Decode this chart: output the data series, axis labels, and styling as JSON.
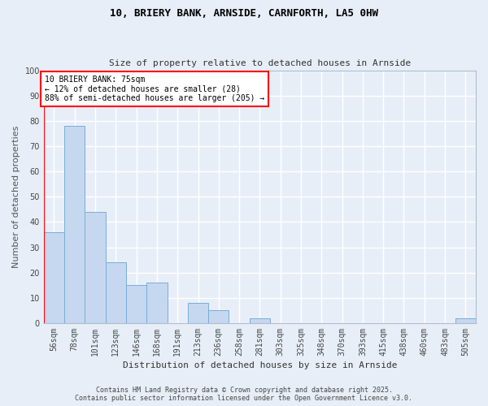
{
  "title": "10, BRIERY BANK, ARNSIDE, CARNFORTH, LA5 0HW",
  "subtitle": "Size of property relative to detached houses in Arnside",
  "xlabel": "Distribution of detached houses by size in Arnside",
  "ylabel": "Number of detached properties",
  "bar_color": "#c5d8f0",
  "bar_edge_color": "#7aadd4",
  "background_color": "#e8eef8",
  "fig_background": "#e8eef8",
  "categories": [
    "56sqm",
    "78sqm",
    "101sqm",
    "123sqm",
    "146sqm",
    "168sqm",
    "191sqm",
    "213sqm",
    "236sqm",
    "258sqm",
    "281sqm",
    "303sqm",
    "325sqm",
    "348sqm",
    "370sqm",
    "393sqm",
    "415sqm",
    "438sqm",
    "460sqm",
    "483sqm",
    "505sqm"
  ],
  "values": [
    36,
    78,
    44,
    24,
    15,
    16,
    0,
    8,
    5,
    0,
    2,
    0,
    0,
    0,
    0,
    0,
    0,
    0,
    0,
    0,
    2
  ],
  "ylim": [
    0,
    100
  ],
  "yticks": [
    0,
    10,
    20,
    30,
    40,
    50,
    60,
    70,
    80,
    90,
    100
  ],
  "red_line_index": 0,
  "annotation_text": "10 BRIERY BANK: 75sqm\n← 12% of detached houses are smaller (28)\n88% of semi-detached houses are larger (205) →",
  "footer_line1": "Contains HM Land Registry data © Crown copyright and database right 2025.",
  "footer_line2": "Contains public sector information licensed under the Open Government Licence v3.0.",
  "title_fontsize": 9,
  "subtitle_fontsize": 8,
  "ylabel_fontsize": 8,
  "xlabel_fontsize": 8,
  "tick_fontsize": 7,
  "annot_fontsize": 7,
  "footer_fontsize": 6
}
